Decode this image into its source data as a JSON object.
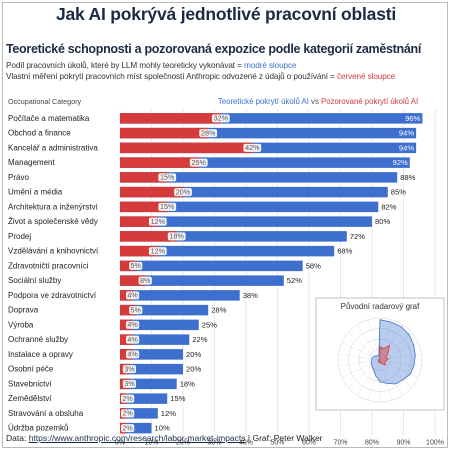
{
  "header": {
    "title": "Jak AI pokrývá jednotlivé pracovní oblasti",
    "subtitle": "Teoretické schopnosti a pozorovaná expozice podle kategorií zaměstnání",
    "note1_text": "Podíl pracovních úkolů, které by LLM mohly teoreticky vykonávat = ",
    "note1_highlight": "modré sloupce",
    "note2_text": "Vlastní měření pokrytí pracovních míst společností Anthropic odvozené z údajů o používání = ",
    "note2_highlight": "červené sloupce"
  },
  "footer": {
    "label": "Data: ",
    "url": "https://www.anthropic.com/research/labor-market-impacts",
    "separator": " | ",
    "credit": "Graf: Peter Walker"
  },
  "colors": {
    "blue": "#3d6fcf",
    "red": "#d63b3b",
    "navy": "#1d2a44"
  },
  "chart_data": {
    "type": "bar",
    "orientation": "horizontal",
    "ylabel": "Occupational Category",
    "legend": {
      "title_blue": "Teoretické pokrytí úkolů AI",
      "vs": " vs ",
      "title_red": "Pozorované pokrytí úkolů AI",
      "placement": "top"
    },
    "xlim": [
      0,
      100
    ],
    "xticks": [
      "0%",
      "10%",
      "20%",
      "30%",
      "40%",
      "50%",
      "60%",
      "70%",
      "80%",
      "90%",
      "100%"
    ],
    "categories": [
      "Počítače a matematika",
      "Obchod a finance",
      "Kancelář a administrativa",
      "Management",
      "Právo",
      "Umění a média",
      "Architektura a inženýrství",
      "Život a společenské vědy",
      "Prodej",
      "Vzdělávání a knihovnictví",
      "Zdravotničtí pracovníci",
      "Sociální služby",
      "Podpora ve zdravotnictví",
      "Doprava",
      "Výroba",
      "Ochranné služby",
      "Instalace a opravy",
      "Osobní péče",
      "Stavebnictví",
      "Zemědělství",
      "Stravování a obsluha",
      "Údržba pozemků"
    ],
    "series": [
      {
        "name": "Teoretické pokrytí úkolů AI",
        "color": "#3d6fcf",
        "values": [
          96,
          94,
          94,
          92,
          88,
          85,
          82,
          80,
          72,
          68,
          58,
          52,
          38,
          28,
          25,
          22,
          20,
          20,
          18,
          15,
          12,
          10
        ],
        "labels": [
          "96%",
          "94%",
          "94%",
          "92%",
          "88%",
          "85%",
          "82%",
          "80%",
          "72%",
          "68%",
          "58%",
          "52%",
          "38%",
          "28%",
          "25%",
          "22%",
          "20%",
          "20%",
          "18%",
          "15%",
          "12%",
          "10%"
        ]
      },
      {
        "name": "Pozorované pokrytí úkolů AI",
        "color": "#d63b3b",
        "values": [
          32,
          28,
          42,
          25,
          15,
          20,
          15,
          12,
          18,
          12,
          5,
          8,
          4,
          5,
          4,
          4,
          4,
          3,
          3,
          2,
          2,
          2
        ],
        "labels": [
          "32%",
          "28%",
          "42%",
          "25%",
          "15%",
          "20%",
          "15%",
          "12%",
          "18%",
          "12%",
          "5%",
          "8%",
          "4%",
          "5%",
          "4%",
          "4%",
          "4%",
          "3%",
          "3%",
          "2%",
          "2%",
          "2%"
        ]
      }
    ],
    "inset": {
      "title": "Původní radarový graf",
      "type": "radar"
    }
  }
}
